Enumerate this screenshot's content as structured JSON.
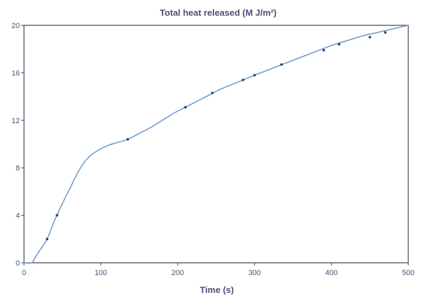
{
  "chart_data": {
    "type": "line",
    "title": "Total heat released (M J/m²)",
    "xlabel": "Time (s)",
    "ylabel": "",
    "xlim": [
      0,
      500
    ],
    "ylim": [
      0,
      20
    ],
    "x_ticks": [
      "0",
      "100",
      "200",
      "300",
      "400",
      "500"
    ],
    "y_ticks": [
      "0",
      "4",
      "8",
      "12",
      "16",
      "20"
    ],
    "grid": false,
    "legend": "none",
    "line_color": "#6f9ccc",
    "marker_color": "#1f3d6b",
    "series": [
      {
        "x": [
          0,
          10,
          15,
          20,
          30,
          40,
          50,
          60,
          70,
          80,
          90,
          100,
          110,
          120,
          135,
          150,
          165,
          180,
          195,
          210,
          225,
          240,
          255,
          270,
          285,
          300,
          320,
          340,
          360,
          380,
          400,
          420,
          440,
          460,
          480,
          500
        ],
        "y": [
          0.0,
          0.0,
          0.5,
          1.0,
          2.0,
          3.6,
          5.0,
          6.3,
          7.6,
          8.6,
          9.2,
          9.6,
          9.9,
          10.1,
          10.4,
          10.9,
          11.4,
          12.0,
          12.6,
          13.1,
          13.6,
          14.1,
          14.6,
          15.0,
          15.4,
          15.8,
          16.3,
          16.8,
          17.3,
          17.8,
          18.3,
          18.7,
          19.1,
          19.4,
          19.7,
          20.0
        ]
      }
    ],
    "markers": {
      "x": [
        30,
        43,
        135,
        210,
        245,
        285,
        300,
        335,
        390,
        410,
        450,
        470
      ],
      "y": [
        2.0,
        4.0,
        10.4,
        13.1,
        14.3,
        15.4,
        15.8,
        16.7,
        17.9,
        18.4,
        19.0,
        19.4
      ]
    }
  }
}
